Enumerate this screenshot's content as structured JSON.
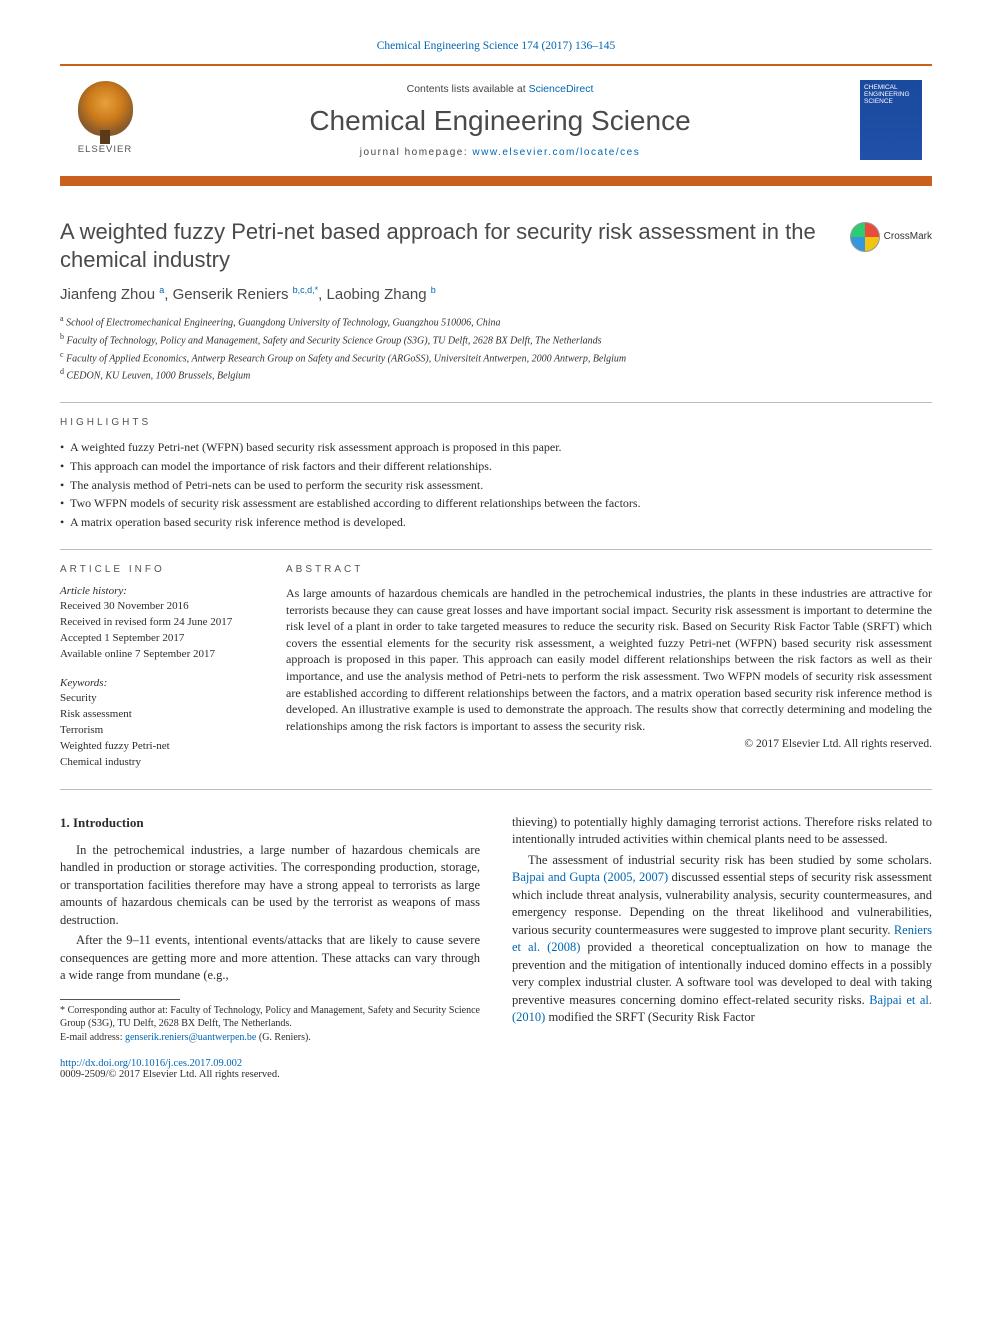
{
  "journal_ref": "Chemical Engineering Science 174 (2017) 136–145",
  "publisher": {
    "name": "ELSEVIER",
    "contents_prefix": "Contents lists available at ",
    "contents_link": "ScienceDirect",
    "journal_title": "Chemical Engineering Science",
    "homepage_prefix": "journal homepage: ",
    "homepage_link": "www.elsevier.com/locate/ces",
    "cover_text": "CHEMICAL ENGINEERING SCIENCE"
  },
  "crossmark_label": "CrossMark",
  "title": "A weighted fuzzy Petri-net based approach for security risk assessment in the chemical industry",
  "authors_html": "Jianfeng Zhou",
  "authors": [
    {
      "name": "Jianfeng Zhou",
      "sup": "a"
    },
    {
      "name": "Genserik Reniers",
      "sup": "b,c,d,*"
    },
    {
      "name": "Laobing Zhang",
      "sup": "b"
    }
  ],
  "affiliations": [
    {
      "sup": "a",
      "text": "School of Electromechanical Engineering, Guangdong University of Technology, Guangzhou 510006, China"
    },
    {
      "sup": "b",
      "text": "Faculty of Technology, Policy and Management, Safety and Security Science Group (S3G), TU Delft, 2628 BX Delft, The Netherlands"
    },
    {
      "sup": "c",
      "text": "Faculty of Applied Economics, Antwerp Research Group on Safety and Security (ARGoSS), Universiteit Antwerpen, 2000 Antwerp, Belgium"
    },
    {
      "sup": "d",
      "text": "CEDON, KU Leuven, 1000 Brussels, Belgium"
    }
  ],
  "highlights_label": "HIGHLIGHTS",
  "highlights": [
    "A weighted fuzzy Petri-net (WFPN) based security risk assessment approach is proposed in this paper.",
    "This approach can model the importance of risk factors and their different relationships.",
    "The analysis method of Petri-nets can be used to perform the security risk assessment.",
    "Two WFPN models of security risk assessment are established according to different relationships between the factors.",
    "A matrix operation based security risk inference method is developed."
  ],
  "article_info_label": "ARTICLE INFO",
  "history_label": "Article history:",
  "history": [
    "Received 30 November 2016",
    "Received in revised form 24 June 2017",
    "Accepted 1 September 2017",
    "Available online 7 September 2017"
  ],
  "keywords_label": "Keywords:",
  "keywords": [
    "Security",
    "Risk assessment",
    "Terrorism",
    "Weighted fuzzy Petri-net",
    "Chemical industry"
  ],
  "abstract_label": "ABSTRACT",
  "abstract": "As large amounts of hazardous chemicals are handled in the petrochemical industries, the plants in these industries are attractive for terrorists because they can cause great losses and have important social impact. Security risk assessment is important to determine the risk level of a plant in order to take targeted measures to reduce the security risk. Based on Security Risk Factor Table (SRFT) which covers the essential elements for the security risk assessment, a weighted fuzzy Petri-net (WFPN) based security risk assessment approach is proposed in this paper. This approach can easily model different relationships between the risk factors as well as their importance, and use the analysis method of Petri-nets to perform the risk assessment. Two WFPN models of security risk assessment are established according to different relationships between the factors, and a matrix operation based security risk inference method is developed. An illustrative example is used to demonstrate the approach. The results show that correctly determining and modeling the relationships among the risk factors is important to assess the security risk.",
  "abstract_copyright": "© 2017 Elsevier Ltd. All rights reserved.",
  "intro_heading": "1. Introduction",
  "body": {
    "left": [
      "In the petrochemical industries, a large number of hazardous chemicals are handled in production or storage activities. The corresponding production, storage, or transportation facilities therefore may have a strong appeal to terrorists as large amounts of hazardous chemicals can be used by the terrorist as weapons of mass destruction.",
      "After the 9–11 events, intentional events/attacks that are likely to cause severe consequences are getting more and more attention. These attacks can vary through a wide range from mundane (e.g.,"
    ],
    "right_first": "thieving) to potentially highly damaging terrorist actions. Therefore risks related to intentionally intruded activities within chemical plants need to be assessed.",
    "right_second_pre": "The assessment of industrial security risk has been studied by some scholars. ",
    "cite1": "Bajpai and Gupta (2005, 2007)",
    "right_second_mid": " discussed essential steps of security risk assessment which include threat analysis, vulnerability analysis, security countermeasures, and emergency response. Depending on the threat likelihood and vulnerabilities, various security countermeasures were suggested to improve plant security. ",
    "cite2": "Reniers et al. (2008)",
    "right_second_mid2": " provided a theoretical conceptualization on how to manage the prevention and the mitigation of intentionally induced domino effects in a possibly very complex industrial cluster. A software tool was developed to deal with taking preventive measures concerning domino effect-related security risks. ",
    "cite3": "Bajpai et al. (2010)",
    "right_second_post": " modified the SRFT (Security Risk Factor"
  },
  "footnote": {
    "corr_label": "* Corresponding author at: Faculty of Technology, Policy and Management, Safety and Security Science Group (S3G), TU Delft, 2628 BX Delft, The Netherlands.",
    "email_label": "E-mail address: ",
    "email": "genserik.reniers@uantwerpen.be",
    "email_suffix": " (G. Reniers)."
  },
  "footer": {
    "doi": "http://dx.doi.org/10.1016/j.ces.2017.09.002",
    "issn_line": "0009-2509/© 2017 Elsevier Ltd. All rights reserved."
  },
  "colors": {
    "link": "#0066b3",
    "accent": "#c9601e",
    "text": "#2c2c2c",
    "heading": "#4a4a4a"
  }
}
